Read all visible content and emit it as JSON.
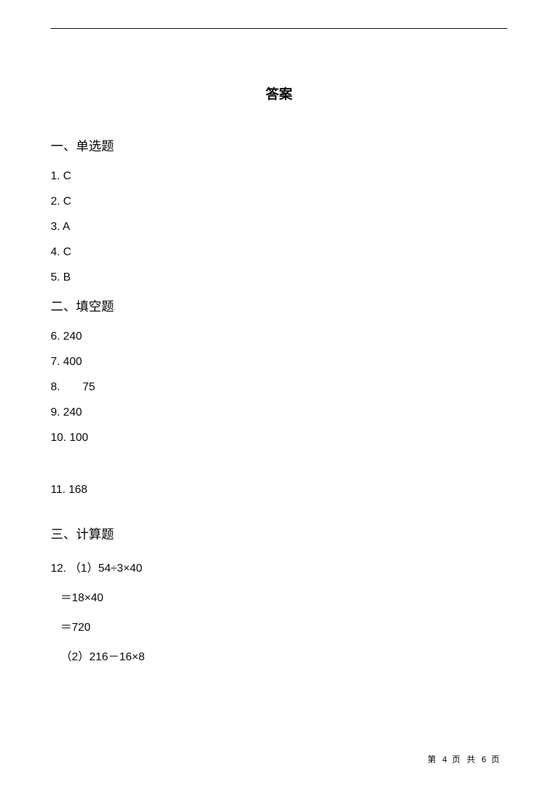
{
  "title": "答案",
  "sections": {
    "s1": {
      "heading": "一、单选题",
      "items": {
        "a1": "1. C",
        "a2": "2. C",
        "a3": "3. A",
        "a4": "4. C",
        "a5": "5. B"
      }
    },
    "s2": {
      "heading": "二、填空题",
      "items": {
        "a6": "6. 240",
        "a7": "7. 400",
        "a8_num": "8.",
        "a8_val": "75",
        "a9": "9. 240",
        "a10": "10. 100",
        "a11": "11. 168"
      }
    },
    "s3": {
      "heading": "三、计算题",
      "items": {
        "c12_1": "12. （1）54÷3×40",
        "c12_2": "＝18×40",
        "c12_3": "＝720",
        "c12_4": "（2）216－16×8"
      }
    }
  },
  "footer": {
    "prefix": "第",
    "current": "4",
    "mid": "页 共",
    "total": "6",
    "suffix": "页"
  }
}
